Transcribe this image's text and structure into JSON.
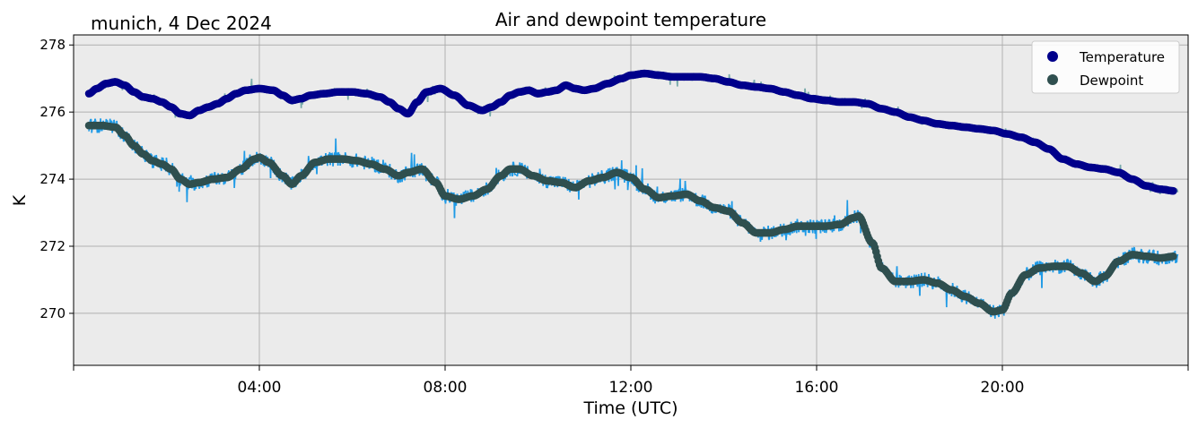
{
  "chart_data": {
    "type": "scatter",
    "title": "Air and dewpoint temperature",
    "station_label": "munich, 4 Dec 2024",
    "xlabel": "Time (UTC)",
    "ylabel": "K",
    "xlim": [
      0,
      24
    ],
    "ylim": [
      268.45,
      278.3
    ],
    "x_ticks": [
      {
        "value": 4,
        "label": "04:00"
      },
      {
        "value": 8,
        "label": "08:00"
      },
      {
        "value": 12,
        "label": "12:00"
      },
      {
        "value": 16,
        "label": "16:00"
      },
      {
        "value": 20,
        "label": "20:00"
      }
    ],
    "x_minor_ticks": [
      0,
      24
    ],
    "y_ticks": [
      270,
      272,
      274,
      276,
      278
    ],
    "grid": true,
    "legend_position": "top-right",
    "series": [
      {
        "name": "Temperature",
        "color": "#00008b",
        "raw_color": "#78aaaa",
        "x": [
          0.33,
          0.5,
          0.7,
          0.9,
          1.1,
          1.3,
          1.5,
          1.7,
          1.9,
          2.1,
          2.3,
          2.5,
          2.7,
          2.9,
          3.1,
          3.3,
          3.5,
          3.7,
          4.0,
          4.3,
          4.5,
          4.7,
          4.9,
          5.1,
          5.4,
          5.7,
          6.0,
          6.3,
          6.6,
          6.8,
          7.0,
          7.2,
          7.4,
          7.6,
          7.9,
          8.2,
          8.5,
          8.8,
          9.0,
          9.2,
          9.4,
          9.6,
          9.8,
          10.0,
          10.2,
          10.4,
          10.6,
          10.8,
          11.0,
          11.2,
          11.5,
          11.8,
          12.0,
          12.3,
          12.6,
          12.9,
          13.2,
          13.5,
          13.8,
          14.1,
          14.4,
          14.7,
          15.0,
          15.3,
          15.6,
          15.9,
          16.2,
          16.5,
          16.8,
          17.1,
          17.4,
          17.7,
          18.0,
          18.3,
          18.6,
          18.9,
          19.2,
          19.5,
          19.8,
          20.1,
          20.4,
          20.7,
          21.0,
          21.3,
          21.6,
          21.9,
          22.2,
          22.5,
          22.8,
          23.1,
          23.4,
          23.7
        ],
        "y": [
          276.55,
          276.7,
          276.85,
          276.9,
          276.8,
          276.6,
          276.45,
          276.4,
          276.3,
          276.15,
          275.95,
          275.9,
          276.05,
          276.15,
          276.25,
          276.4,
          276.55,
          276.65,
          276.7,
          276.65,
          276.5,
          276.35,
          276.4,
          276.5,
          276.55,
          276.6,
          276.6,
          276.55,
          276.45,
          276.3,
          276.1,
          275.95,
          276.3,
          276.6,
          276.7,
          276.5,
          276.2,
          276.05,
          276.15,
          276.3,
          276.5,
          276.6,
          276.65,
          276.55,
          276.6,
          276.65,
          276.8,
          276.7,
          276.65,
          276.7,
          276.85,
          277.0,
          277.1,
          277.15,
          277.1,
          277.05,
          277.05,
          277.05,
          277.0,
          276.9,
          276.8,
          276.75,
          276.7,
          276.6,
          276.5,
          276.4,
          276.35,
          276.3,
          276.3,
          276.25,
          276.1,
          276.0,
          275.85,
          275.75,
          275.65,
          275.6,
          275.55,
          275.5,
          275.45,
          275.35,
          275.25,
          275.1,
          274.9,
          274.6,
          274.45,
          274.35,
          274.3,
          274.2,
          274.0,
          273.8,
          273.7,
          273.65
        ],
        "noise": 0.12
      },
      {
        "name": "Dewpoint",
        "color": "#2f4f4f",
        "raw_color": "#1e9ae6",
        "x": [
          0.33,
          0.6,
          0.9,
          1.1,
          1.3,
          1.5,
          1.7,
          1.9,
          2.1,
          2.3,
          2.5,
          2.7,
          3.0,
          3.3,
          3.6,
          3.9,
          4.0,
          4.2,
          4.5,
          4.7,
          4.9,
          5.2,
          5.5,
          5.8,
          6.1,
          6.4,
          6.7,
          7.0,
          7.2,
          7.5,
          7.8,
          8.0,
          8.3,
          8.6,
          8.9,
          9.2,
          9.4,
          9.6,
          9.9,
          10.2,
          10.5,
          10.8,
          11.1,
          11.4,
          11.7,
          12.0,
          12.3,
          12.6,
          12.9,
          13.2,
          13.5,
          13.8,
          14.1,
          14.4,
          14.7,
          15.0,
          15.3,
          15.6,
          15.9,
          16.2,
          16.5,
          16.8,
          16.9,
          17.2,
          17.4,
          17.7,
          18.0,
          18.3,
          18.6,
          18.9,
          19.2,
          19.5,
          19.8,
          20.0,
          20.2,
          20.5,
          20.8,
          21.1,
          21.4,
          21.7,
          22.0,
          22.2,
          22.5,
          22.8,
          23.1,
          23.4,
          23.7
        ],
        "y": [
          275.6,
          275.6,
          275.55,
          275.3,
          275.0,
          274.75,
          274.55,
          274.45,
          274.3,
          274.0,
          273.85,
          273.9,
          274.0,
          274.05,
          274.3,
          274.6,
          274.65,
          274.5,
          274.1,
          273.85,
          274.1,
          274.5,
          274.6,
          274.6,
          274.55,
          274.45,
          274.3,
          274.1,
          274.2,
          274.3,
          273.9,
          273.5,
          273.4,
          273.5,
          273.7,
          274.1,
          274.3,
          274.3,
          274.1,
          273.95,
          273.9,
          273.75,
          273.95,
          274.05,
          274.2,
          274.05,
          273.7,
          273.45,
          273.5,
          273.55,
          273.35,
          273.15,
          273.05,
          272.7,
          272.4,
          272.4,
          272.5,
          272.6,
          272.6,
          272.6,
          272.65,
          272.85,
          272.9,
          272.1,
          271.35,
          270.95,
          270.95,
          271.0,
          270.9,
          270.7,
          270.5,
          270.3,
          270.05,
          270.1,
          270.6,
          271.15,
          271.35,
          271.4,
          271.4,
          271.2,
          270.95,
          271.1,
          271.55,
          271.75,
          271.7,
          271.65,
          271.7
        ],
        "noise": 0.22
      }
    ]
  }
}
